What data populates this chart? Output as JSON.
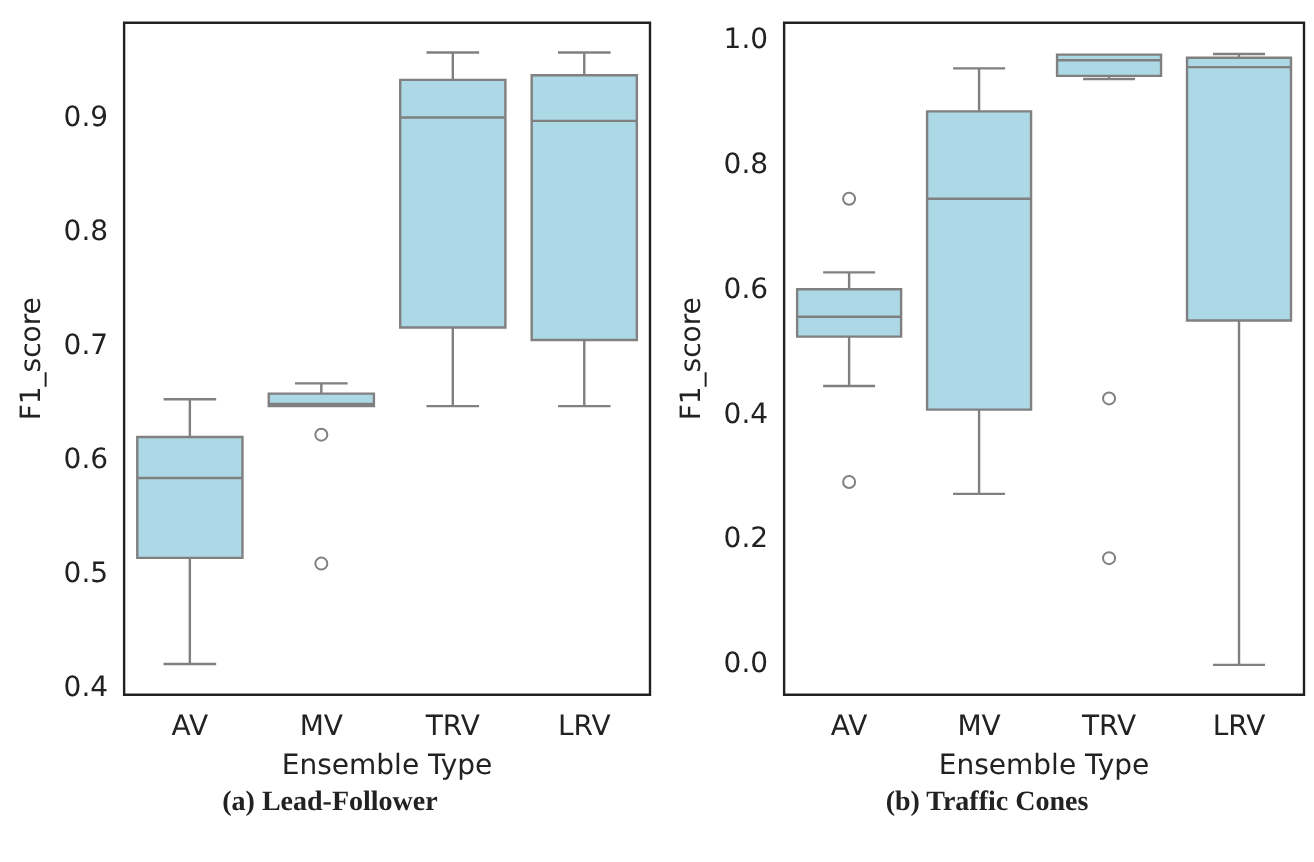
{
  "chart_data": [
    {
      "type": "box",
      "categories": [
        "AV",
        "MV",
        "TRV",
        "LRV"
      ],
      "xlabel": "Ensemble Type",
      "ylabel": "F1_score",
      "ylim": [
        0.395,
        0.984
      ],
      "yticks": [
        0.4,
        0.5,
        0.6,
        0.7,
        0.8,
        0.9
      ],
      "grid": false,
      "annotations": [
        "(a) Lead-Follower"
      ],
      "series": [
        {
          "color": "#add8e6",
          "boxes": [
            {
              "low": 0.422,
              "q1": 0.515,
              "median": 0.585,
              "q3": 0.621,
              "high": 0.654
            },
            {
              "low": 0.648,
              "q1": 0.648,
              "median": 0.65,
              "q3": 0.659,
              "high": 0.668,
              "outliers": [
                0.623,
                0.51
              ]
            },
            {
              "low": 0.648,
              "q1": 0.717,
              "median": 0.901,
              "q3": 0.934,
              "high": 0.958
            },
            {
              "low": 0.648,
              "q1": 0.706,
              "median": 0.898,
              "q3": 0.938,
              "high": 0.958
            }
          ]
        }
      ]
    },
    {
      "type": "box",
      "categories": [
        "AV",
        "MV",
        "TRV",
        "LRV"
      ],
      "xlabel": "Ensemble Type",
      "ylabel": "F1_score",
      "ylim": [
        -0.048,
        1.029
      ],
      "yticks": [
        {
          "value": 0,
          "label": "0.0"
        },
        0.2,
        0.4,
        0.6,
        0.8,
        {
          "value": 1,
          "label": "1.0"
        }
      ],
      "grid": false,
      "annotations": [
        "(b) Traffic Cones"
      ],
      "series": [
        {
          "color": "#add8e6",
          "boxes": [
            {
              "low": 0.447,
              "q1": 0.526,
              "median": 0.558,
              "q3": 0.602,
              "high": 0.629,
              "outliers": [
                0.747,
                0.293
              ]
            },
            {
              "low": 0.274,
              "q1": 0.409,
              "median": 0.747,
              "q3": 0.887,
              "high": 0.956
            },
            {
              "low": 0.939,
              "q1": 0.944,
              "median": 0.969,
              "q3": 0.978,
              "high": 0.978,
              "outliers": [
                0.427,
                0.171
              ]
            },
            {
              "low": 0.0,
              "q1": 0.552,
              "median": 0.958,
              "q3": 0.973,
              "high": 0.979
            }
          ]
        }
      ]
    }
  ]
}
